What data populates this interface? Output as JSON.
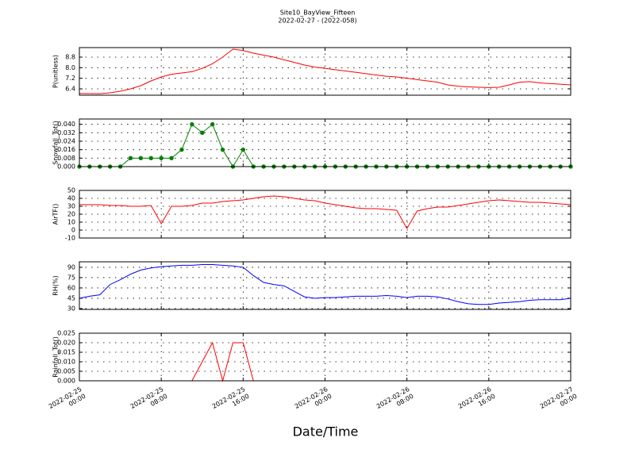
{
  "chart_data": {
    "type": "line",
    "title": "Site10_BayView_Fifteen",
    "subtitle": "2022-02-27 - (2022-058)",
    "xlabel": "Date/Time",
    "grid": true,
    "xlim": [
      "2022-02-25 00:00",
      "2022-02-27 00:00"
    ],
    "xticks": [
      "2022-02-25 00:00",
      "2022-02-25 08:00",
      "2022-02-25 16:00",
      "2022-02-26 00:00",
      "2022-02-26 08:00",
      "2022-02-26 16:00",
      "2022-02-27 00:00"
    ],
    "x": [
      "2022-02-25 00:00",
      "2022-02-25 01:00",
      "2022-02-25 02:00",
      "2022-02-25 03:00",
      "2022-02-25 04:00",
      "2022-02-25 05:00",
      "2022-02-25 06:00",
      "2022-02-25 07:00",
      "2022-02-25 08:00",
      "2022-02-25 09:00",
      "2022-02-25 10:00",
      "2022-02-25 11:00",
      "2022-02-25 12:00",
      "2022-02-25 13:00",
      "2022-02-25 14:00",
      "2022-02-25 15:00",
      "2022-02-25 16:00",
      "2022-02-25 17:00",
      "2022-02-25 18:00",
      "2022-02-25 19:00",
      "2022-02-25 20:00",
      "2022-02-25 21:00",
      "2022-02-25 22:00",
      "2022-02-25 23:00",
      "2022-02-26 00:00",
      "2022-02-26 01:00",
      "2022-02-26 02:00",
      "2022-02-26 03:00",
      "2022-02-26 04:00",
      "2022-02-26 05:00",
      "2022-02-26 06:00",
      "2022-02-26 07:00",
      "2022-02-26 08:00",
      "2022-02-26 09:00",
      "2022-02-26 10:00",
      "2022-02-26 11:00",
      "2022-02-26 12:00",
      "2022-02-26 13:00",
      "2022-02-26 14:00",
      "2022-02-26 15:00",
      "2022-02-26 16:00",
      "2022-02-26 17:00",
      "2022-02-26 18:00",
      "2022-02-26 19:00",
      "2022-02-26 20:00",
      "2022-02-26 21:00",
      "2022-02-26 22:00",
      "2022-02-26 23:00",
      "2022-02-27 00:00"
    ],
    "panels": [
      {
        "ylabel": "P(unitless)",
        "color": "#ff0000",
        "marker": false,
        "ylim": [
          5.92,
          9.52
        ],
        "yticks": [
          6.4,
          7.2,
          {
            "value": 8.0,
            "label": "8.0"
          },
          8.8
        ],
        "values": [
          6.05,
          6.04,
          6.03,
          6.1,
          6.22,
          6.4,
          6.64,
          7.0,
          7.3,
          7.5,
          7.6,
          7.7,
          7.95,
          8.3,
          8.8,
          9.4,
          9.3,
          9.1,
          8.95,
          8.8,
          8.6,
          8.4,
          8.2,
          8.05,
          7.95,
          7.85,
          7.75,
          7.65,
          7.55,
          7.45,
          7.35,
          7.3,
          7.2,
          7.1,
          7.0,
          6.9,
          6.7,
          6.6,
          6.55,
          6.52,
          6.5,
          6.52,
          6.7,
          6.9,
          6.95,
          6.85,
          6.8,
          6.75,
          6.7
        ]
      },
      {
        "ylabel": "Snowfall_Tot()",
        "color": "#007f00",
        "marker": true,
        "ylim": [
          0,
          0.045
        ],
        "yticks": [
          {
            "value": 0,
            "label": "0.000"
          },
          0.008,
          0.016,
          0.024,
          0.032,
          {
            "value": 0.04,
            "label": "0.040"
          }
        ],
        "values": [
          0,
          0,
          0,
          0,
          0,
          0.008,
          0.008,
          0.008,
          0.008,
          0.008,
          0.016,
          0.04,
          0.032,
          0.04,
          0.016,
          0,
          0.016,
          0,
          0,
          0,
          0,
          0,
          0,
          0,
          0,
          0,
          0,
          0,
          0,
          0,
          0,
          0,
          0,
          0,
          0,
          0,
          0,
          0,
          0,
          0,
          0,
          0,
          0,
          0,
          0,
          0,
          0,
          0,
          0
        ]
      },
      {
        "ylabel": "AirTF()",
        "color": "#ff0000",
        "marker": false,
        "ylim": [
          -10,
          50
        ],
        "yticks": [
          -10,
          0,
          10,
          20,
          30,
          40,
          50
        ],
        "values": [
          32,
          32,
          32,
          31,
          31,
          30,
          30,
          31,
          8,
          30,
          30,
          31,
          34,
          34,
          36,
          37,
          38,
          40,
          42,
          43,
          42,
          40,
          38,
          37,
          34,
          32,
          30,
          28,
          27,
          27,
          26,
          25,
          2,
          24,
          27,
          29,
          29,
          31,
          33,
          35,
          37,
          38,
          37,
          36,
          35,
          35,
          34,
          33,
          32
        ]
      },
      {
        "ylabel": "RH(%)",
        "color": "#0000ff",
        "marker": false,
        "ylim": [
          28.8,
          98
        ],
        "yticks": [
          30,
          45,
          60,
          75,
          90
        ],
        "values": [
          45,
          48,
          50,
          65,
          72,
          80,
          86,
          89,
          91,
          92,
          93,
          93,
          94,
          94,
          93,
          92,
          90,
          78,
          68,
          65,
          63,
          55,
          47,
          45,
          46,
          46,
          47,
          48,
          48,
          48,
          49,
          48,
          46,
          48,
          48,
          47,
          44,
          40,
          37,
          36,
          36,
          38,
          39,
          40,
          42,
          43,
          43,
          43,
          45
        ]
      },
      {
        "ylabel": "Rainfall_Tot()",
        "color": "#ff0000",
        "marker": false,
        "ylim": [
          0,
          0.025
        ],
        "yticks": [
          {
            "value": 0,
            "label": "0.000"
          },
          {
            "value": 0.005,
            "label": "0.005"
          },
          {
            "value": 0.01,
            "label": "0.010"
          },
          0.015,
          {
            "value": 0.02,
            "label": "0.020"
          },
          0.025
        ],
        "values": [
          0,
          0,
          0,
          0,
          0,
          0,
          0,
          0,
          0,
          0,
          0,
          0,
          0.01,
          0.02,
          0,
          0.02,
          0.02,
          0,
          0,
          0,
          0,
          0,
          0,
          0,
          0,
          0,
          0,
          0,
          0,
          0,
          0,
          0,
          0,
          0,
          0,
          0,
          0,
          0,
          0,
          0,
          0,
          0,
          0,
          0,
          0,
          0,
          0,
          0,
          0
        ]
      }
    ]
  }
}
